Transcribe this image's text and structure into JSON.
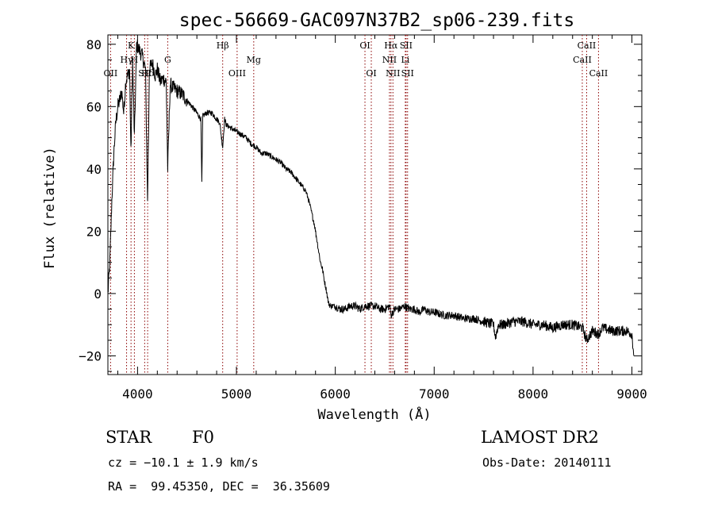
{
  "chart_data": {
    "type": "line",
    "title": "spec-56669-GAC097N37B2_sp06-239.fits",
    "xlabel": "Wavelength (Å)",
    "ylabel": "Flux (relative)",
    "xlim": [
      3700,
      9100
    ],
    "ylim": [
      -26,
      83
    ],
    "xticks": [
      4000,
      5000,
      6000,
      7000,
      8000,
      9000
    ],
    "xtick_labels": [
      "4000",
      "5000",
      "6000",
      "7000",
      "8000",
      "9000"
    ],
    "yticks": [
      -20,
      0,
      20,
      40,
      60,
      80
    ],
    "ytick_labels": [
      "−20",
      "0",
      "20",
      "40",
      "60",
      "80"
    ],
    "grid": false,
    "line_color": "#000000",
    "marker_color": "#8b0000",
    "series": [
      {
        "x": [
          3700,
          3720,
          3740,
          3760,
          3780,
          3800,
          3820,
          3840,
          3860,
          3880,
          3900,
          3920,
          3933,
          3950,
          3968,
          3990,
          4020,
          4050,
          4080,
          4101,
          4120,
          4150,
          4180,
          4200,
          4230,
          4260,
          4290,
          4305,
          4330,
          4360,
          4400,
          4450,
          4500,
          4550,
          4600,
          4640,
          4650,
          4660,
          4700,
          4750,
          4800,
          4830,
          4861,
          4880,
          4900,
          4950,
          5000,
          5050,
          5100,
          5150,
          5200,
          5250,
          5300,
          5350,
          5400,
          5450,
          5500,
          5550,
          5600,
          5650,
          5700,
          5730,
          5760,
          5790,
          5820,
          5850,
          5870,
          5890,
          5910,
          5930,
          5950,
          5970,
          6000,
          6050,
          6100,
          6150,
          6200,
          6250,
          6300,
          6350,
          6400,
          6450,
          6500,
          6550,
          6563,
          6600,
          6650,
          6700,
          6750,
          6800,
          6850,
          6900,
          6950,
          7000,
          7100,
          7200,
          7300,
          7400,
          7500,
          7600,
          7620,
          7650,
          7700,
          7800,
          7900,
          8000,
          8100,
          8200,
          8300,
          8400,
          8500,
          8542,
          8600,
          8662,
          8700,
          8800,
          8900,
          8950,
          9000,
          9020
        ],
        "y": [
          0,
          10,
          30,
          45,
          55,
          60,
          62,
          65,
          58,
          68,
          70,
          72,
          45,
          75,
          50,
          80,
          78,
          76,
          72,
          30,
          72,
          74,
          70,
          72,
          68,
          69,
          68,
          40,
          67,
          66,
          65,
          64,
          62,
          60,
          58,
          56,
          35,
          57,
          58,
          58,
          56,
          55,
          47,
          56,
          54,
          53,
          52,
          51,
          50,
          48,
          47,
          45,
          45,
          44,
          43,
          42,
          40,
          39,
          37,
          35,
          33,
          30,
          26,
          22,
          16,
          10,
          8,
          4,
          1,
          -3,
          -4,
          -4,
          -4,
          -5,
          -5,
          -4,
          -4,
          -5,
          -4,
          -4,
          -4,
          -5,
          -5,
          -4,
          -7,
          -5,
          -5,
          -4,
          -5,
          -5,
          -6,
          -5,
          -6,
          -6,
          -7,
          -7,
          -8,
          -8,
          -9,
          -10,
          -14,
          -10,
          -10,
          -9,
          -9,
          -10,
          -10,
          -11,
          -10,
          -10,
          -11,
          -15,
          -12,
          -13,
          -11,
          -12,
          -12,
          -12,
          -13,
          -20
        ]
      }
    ],
    "lines": [
      {
        "label": "OII",
        "x": 3727,
        "row": 3
      },
      {
        "label": "Hγ",
        "x": 3889,
        "row": 2
      },
      {
        "label": "K",
        "x": 3934,
        "row": 1
      },
      {
        "label": "H",
        "x": 3968,
        "row": 2
      },
      {
        "label": "SII",
        "x": 4072,
        "row": 3
      },
      {
        "label": "Hδ",
        "x": 4102,
        "row": 3
      },
      {
        "label": "G",
        "x": 4305,
        "row": 2
      },
      {
        "label": "Hβ",
        "x": 4861,
        "row": 1
      },
      {
        "label": "OIII",
        "x": 5007,
        "row": 3
      },
      {
        "label": "Mg",
        "x": 5175,
        "row": 2
      },
      {
        "label": "OI",
        "x": 6300,
        "row": 1
      },
      {
        "label": "OI",
        "x": 6364,
        "row": 3
      },
      {
        "label": "NII",
        "x": 6548,
        "row": 2
      },
      {
        "label": "Hα",
        "x": 6563,
        "row": 1
      },
      {
        "label": "NII",
        "x": 6583,
        "row": 3
      },
      {
        "label": "Li",
        "x": 6708,
        "row": 2
      },
      {
        "label": "SII",
        "x": 6716,
        "row": 1
      },
      {
        "label": "SII",
        "x": 6731,
        "row": 3
      },
      {
        "label": "CaII",
        "x": 8498,
        "row": 2
      },
      {
        "label": "CaII",
        "x": 8542,
        "row": 1
      },
      {
        "label": "CaII",
        "x": 8662,
        "row": 3
      }
    ]
  },
  "info": {
    "object_class": "STAR",
    "subclass": "F0",
    "survey": "LAMOST DR2",
    "redshift": "cz = −10.1 ± 1.9 km/s",
    "obs_date": "Obs-Date: 20140111",
    "coords": "RA =  99.45350, DEC =  36.35609"
  }
}
